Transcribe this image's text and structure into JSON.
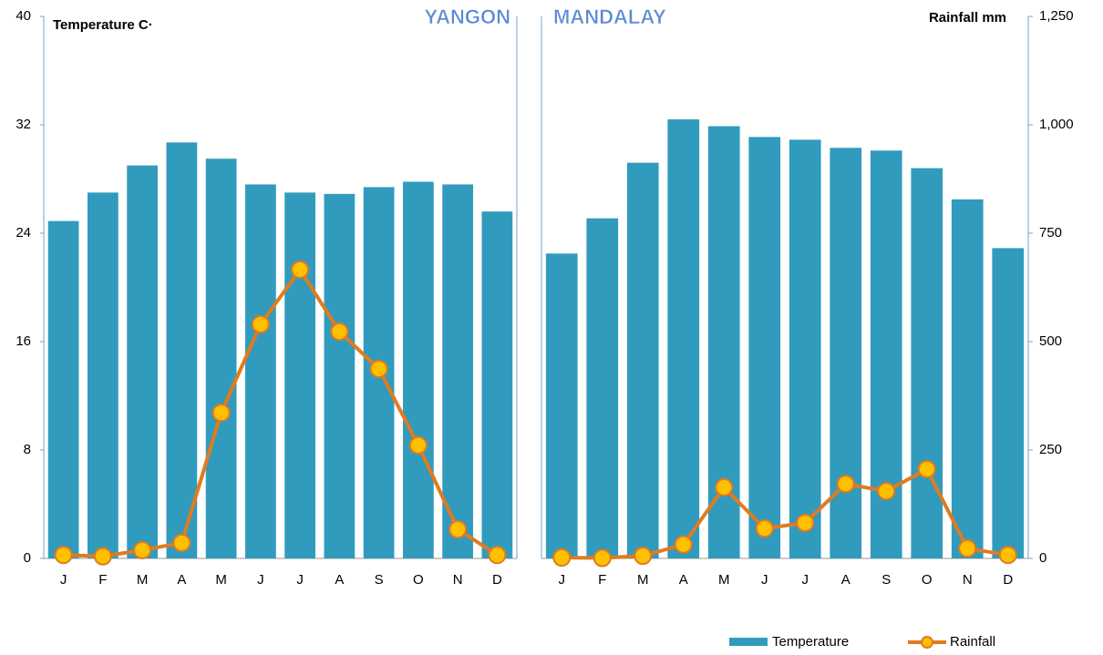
{
  "chart_data": {
    "type": "bar_line",
    "ylabel": "Temperature C·",
    "y2label": "Rainfall mm",
    "categories": [
      "J",
      "F",
      "M",
      "A",
      "M",
      "J",
      "J",
      "A",
      "S",
      "O",
      "N",
      "D"
    ],
    "ylim": [
      0,
      40
    ],
    "yticks": [
      0,
      8,
      16,
      24,
      32,
      40
    ],
    "y2lim": [
      0,
      1250
    ],
    "y2ticks": [
      0,
      250,
      500,
      750,
      {
        "value": 1000,
        "label": "1,000"
      },
      {
        "value": 1250,
        "label": "1,250"
      }
    ],
    "legend": [
      "Temperature",
      "Rainfall"
    ],
    "bar_color": "#319bbd",
    "line_color": "#e07b20",
    "marker_color": "#ffc000",
    "panels": [
      {
        "title": "YANGON",
        "temperature": [
          24.9,
          27.0,
          29.0,
          30.7,
          29.5,
          27.6,
          27.0,
          26.9,
          27.4,
          27.8,
          27.6,
          25.6
        ],
        "rainfall": [
          8,
          5,
          19,
          36,
          336,
          540,
          666,
          523,
          437,
          261,
          67,
          8
        ]
      },
      {
        "title": "MANDALAY",
        "temperature": [
          22.5,
          25.1,
          29.2,
          32.4,
          31.9,
          31.1,
          30.9,
          30.3,
          30.1,
          28.8,
          26.5,
          22.9
        ],
        "rainfall": [
          2,
          1,
          6,
          32,
          164,
          69,
          82,
          172,
          155,
          206,
          23,
          8
        ]
      }
    ]
  }
}
